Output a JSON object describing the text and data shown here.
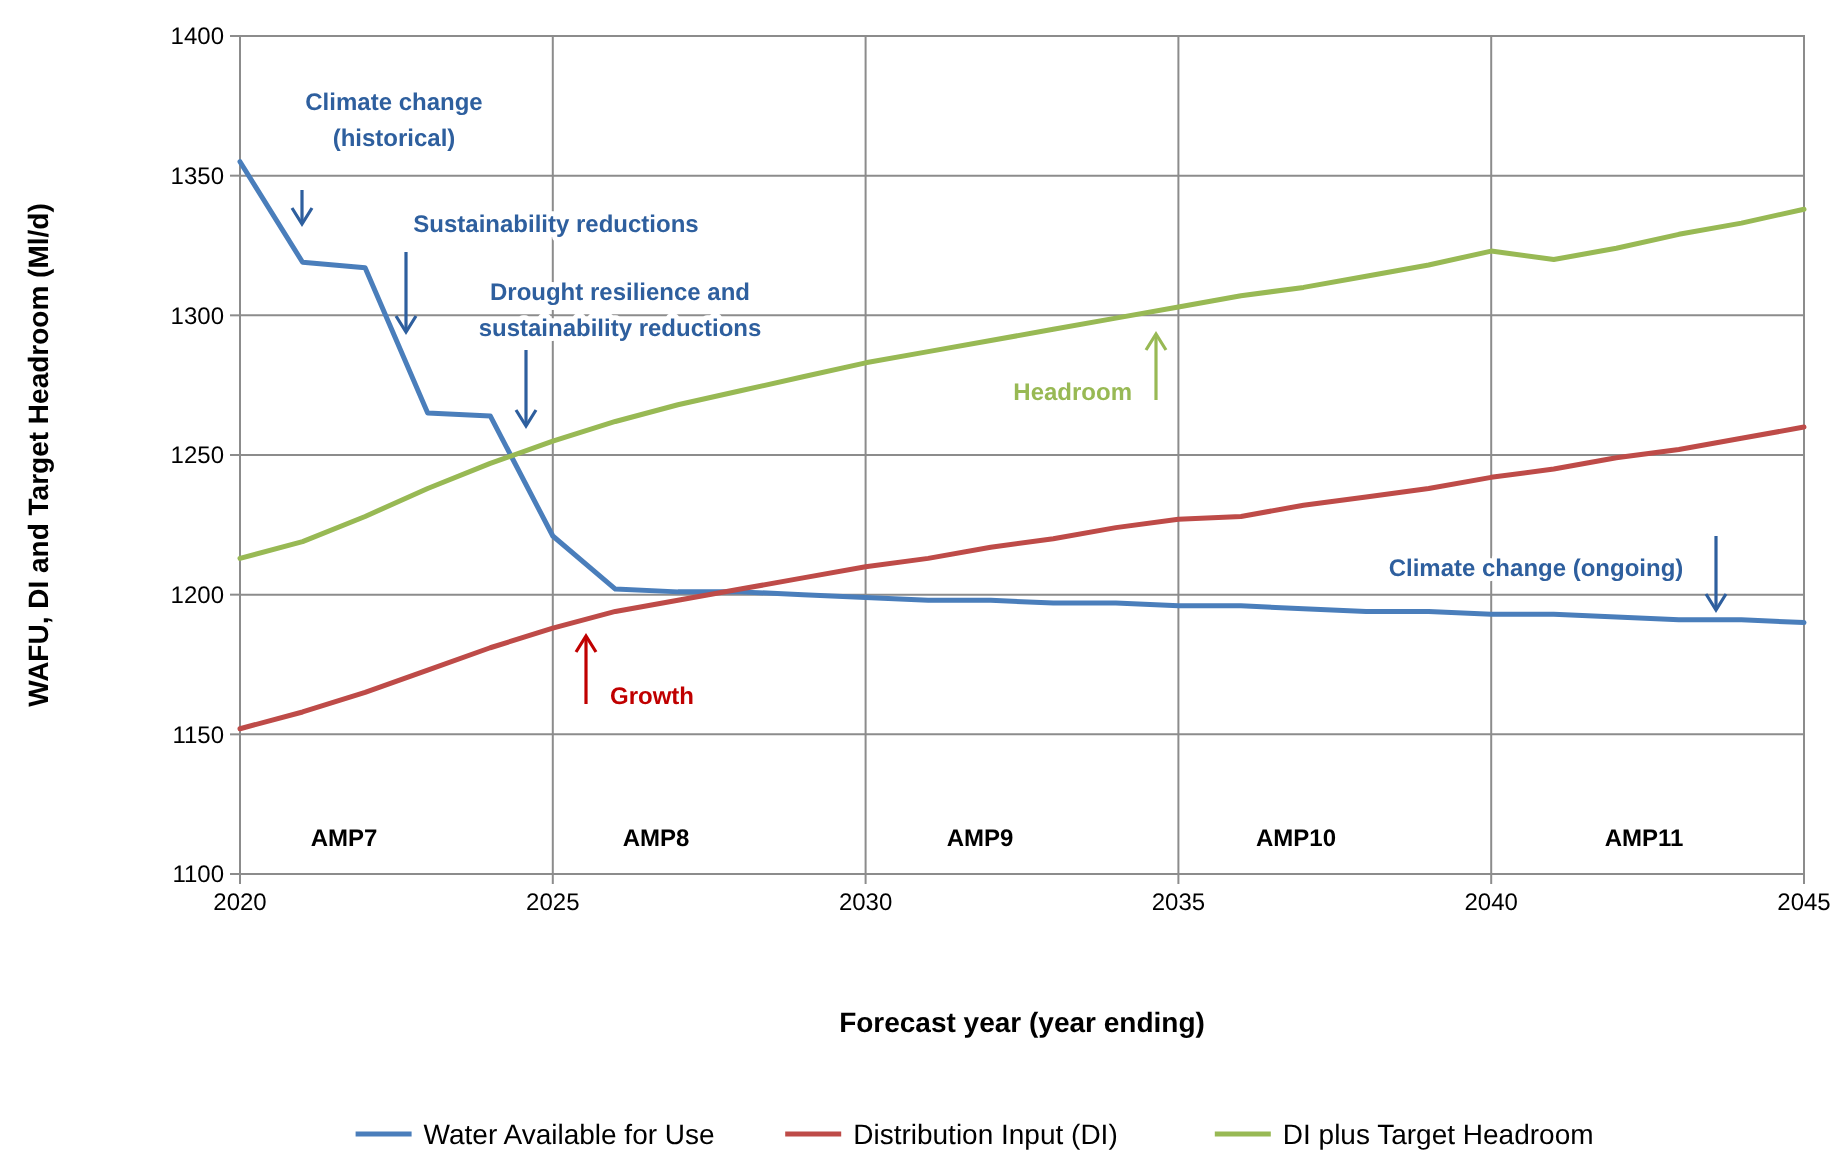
{
  "chart_data": {
    "type": "line",
    "xlabel": "Forecast year (year ending)",
    "ylabel": "WAFU, DI and Target Headroom (Ml/d)",
    "x": [
      2020,
      2021,
      2022,
      2023,
      2024,
      2025,
      2026,
      2027,
      2028,
      2029,
      2030,
      2031,
      2032,
      2033,
      2034,
      2035,
      2036,
      2037,
      2038,
      2039,
      2040,
      2041,
      2042,
      2043,
      2044,
      2045
    ],
    "series": [
      {
        "name": "Water Available for Use",
        "color": "#4a7ebb",
        "values": [
          1355,
          1319,
          1317,
          1265,
          1264,
          1221,
          1202,
          1201,
          1201,
          1200,
          1199,
          1198,
          1198,
          1197,
          1197,
          1196,
          1196,
          1195,
          1194,
          1194,
          1193,
          1193,
          1192,
          1191,
          1191,
          1190
        ]
      },
      {
        "name": "Distribution Input (DI)",
        "color": "#be4b48",
        "values": [
          1152,
          1158,
          1165,
          1173,
          1181,
          1188,
          1194,
          1198,
          1202,
          1206,
          1210,
          1213,
          1217,
          1220,
          1224,
          1227,
          1228,
          1232,
          1235,
          1238,
          1242,
          1245,
          1249,
          1252,
          1256,
          1260
        ]
      },
      {
        "name": "DI plus Target Headroom",
        "color": "#98b954",
        "values": [
          1213,
          1219,
          1228,
          1238,
          1247,
          1255,
          1262,
          1268,
          1273,
          1278,
          1283,
          1287,
          1291,
          1295,
          1299,
          1303,
          1307,
          1310,
          1314,
          1318,
          1323,
          1320,
          1324,
          1329,
          1333,
          1338
        ]
      }
    ],
    "xlim": [
      2020,
      2045
    ],
    "xticks": [
      2020,
      2025,
      2030,
      2035,
      2040,
      2045
    ],
    "ylim": [
      1100,
      1400
    ],
    "yticks": [
      1100,
      1150,
      1200,
      1250,
      1300,
      1350,
      1400
    ],
    "grid": true,
    "legend": "bottom",
    "marker": "none",
    "line_style": "solid",
    "annotations": [
      "Climate change (historical)",
      "Sustainability reductions",
      "Drought resilience and sustainability reductions",
      "Growth",
      "Headroom",
      "Climate change (ongoing)",
      "AMP7",
      "AMP8",
      "AMP9",
      "AMP10",
      "AMP11"
    ]
  }
}
